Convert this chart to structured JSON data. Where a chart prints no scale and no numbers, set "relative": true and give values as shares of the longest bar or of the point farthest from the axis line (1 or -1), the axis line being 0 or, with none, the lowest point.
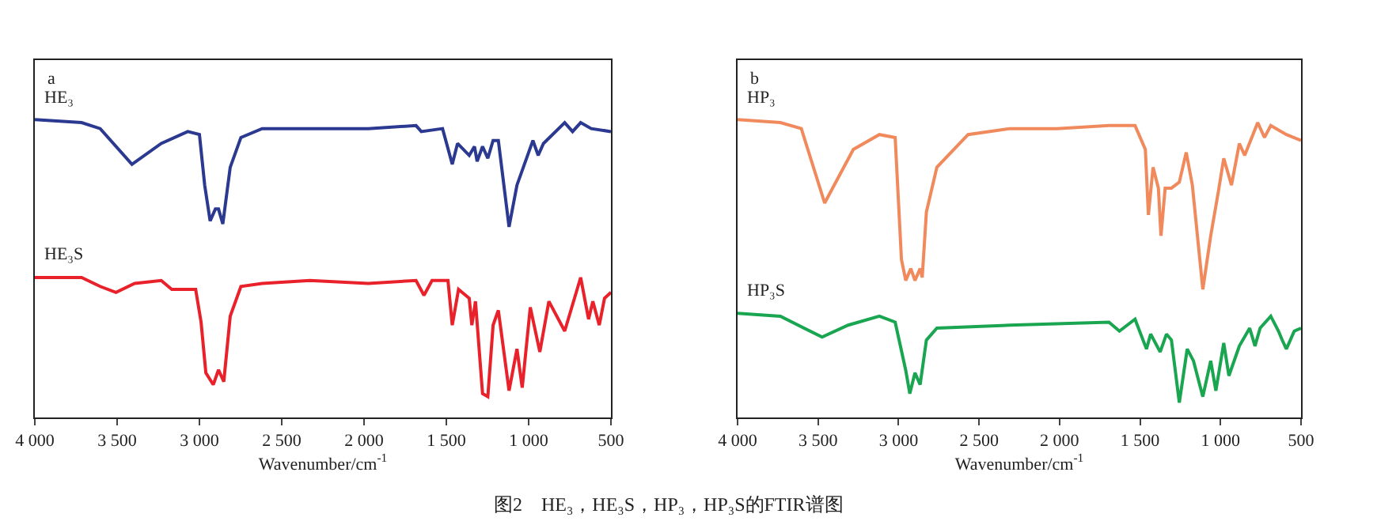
{
  "chart_data": [
    {
      "type": "line",
      "title": "a",
      "xlabel": "Wavenumber/cm$^{-1}$",
      "relative": true,
      "tick_labels": "x",
      "marker": "none",
      "line_style": "solid",
      "xlim": [
        4000,
        500
      ],
      "xticks": [
        {
          "value": 4000,
          "label": "4 000"
        },
        {
          "value": 3500,
          "label": "3 500"
        },
        {
          "value": 3000,
          "label": "3 000"
        },
        {
          "value": 2500,
          "label": "2 500"
        },
        {
          "value": 2000,
          "label": "2 000"
        },
        {
          "value": 1500,
          "label": "1 500"
        },
        {
          "value": 1000,
          "label": "1 000"
        },
        500
      ],
      "series": [
        {
          "name": "HE₃",
          "color": "#2b3990",
          "x": [
            4000,
            3716,
            3603,
            3410,
            3232,
            3071,
            3000,
            2968,
            2935,
            2903,
            2884,
            2858,
            2813,
            2748,
            2619,
            2329,
            1974,
            1684,
            1652,
            1523,
            1464,
            1432,
            1361,
            1329,
            1313,
            1280,
            1248,
            1216,
            1184,
            1119,
            1071,
            974,
            942,
            910,
            781,
            733,
            684,
            620,
            500
          ],
          "values": [
            1.0,
            0.99,
            0.97,
            0.85,
            0.92,
            0.96,
            0.95,
            0.78,
            0.66,
            0.7,
            0.7,
            0.65,
            0.84,
            0.94,
            0.97,
            0.97,
            0.97,
            0.98,
            0.96,
            0.97,
            0.85,
            0.92,
            0.88,
            0.91,
            0.86,
            0.91,
            0.87,
            0.93,
            0.93,
            0.64,
            0.78,
            0.93,
            0.88,
            0.92,
            0.99,
            0.96,
            0.99,
            0.97,
            0.96
          ]
        },
        {
          "name": "HE₃S",
          "color": "#e8212a",
          "x": [
            4000,
            3716,
            3603,
            3507,
            3394,
            3232,
            3168,
            3023,
            2990,
            2961,
            2916,
            2884,
            2852,
            2813,
            2748,
            2619,
            2329,
            1974,
            1684,
            1636,
            1587,
            1490,
            1464,
            1426,
            1361,
            1345,
            1323,
            1280,
            1248,
            1216,
            1184,
            1119,
            1071,
            1039,
            990,
            932,
            877,
            781,
            684,
            636,
            610,
            571,
            539,
            500
          ],
          "values": [
            0.47,
            0.47,
            0.44,
            0.42,
            0.45,
            0.46,
            0.43,
            0.43,
            0.32,
            0.15,
            0.11,
            0.16,
            0.12,
            0.34,
            0.44,
            0.45,
            0.46,
            0.45,
            0.46,
            0.41,
            0.46,
            0.46,
            0.31,
            0.43,
            0.4,
            0.31,
            0.39,
            0.08,
            0.07,
            0.31,
            0.36,
            0.09,
            0.23,
            0.1,
            0.37,
            0.22,
            0.39,
            0.29,
            0.47,
            0.33,
            0.39,
            0.31,
            0.4,
            0.42
          ]
        }
      ],
      "annotations": [
        "图2　HE₃，HE₃S，HP₃，HP₃S的FTIR谱图"
      ]
    },
    {
      "type": "line",
      "title": "b",
      "xlabel": "Wavenumber/cm$^{-1}$",
      "relative": true,
      "tick_labels": "x",
      "marker": "none",
      "line_style": "solid",
      "xlim": [
        4000,
        500
      ],
      "xticks": [
        {
          "value": 4000,
          "label": "4 000"
        },
        {
          "value": 3500,
          "label": "3 500"
        },
        {
          "value": 3000,
          "label": "3 000"
        },
        {
          "value": 2500,
          "label": "2 500"
        },
        {
          "value": 2000,
          "label": "2 000"
        },
        {
          "value": 1500,
          "label": "1 500"
        },
        {
          "value": 1000,
          "label": "1 000"
        },
        500
      ],
      "series": [
        {
          "name": "HP₃",
          "color": "#f08a5d",
          "x": [
            4000,
            3734,
            3604,
            3459,
            3281,
            3119,
            3021,
            2982,
            2955,
            2924,
            2898,
            2866,
            2853,
            2827,
            2762,
            2568,
            2309,
            2017,
            1693,
            1531,
            1467,
            1448,
            1419,
            1386,
            1370,
            1344,
            1305,
            1256,
            1213,
            1175,
            1110,
            1061,
            1013,
            980,
            932,
            883,
            850,
            769,
            727,
            688,
            591,
            500
          ],
          "values": [
            1.0,
            0.99,
            0.97,
            0.72,
            0.9,
            0.95,
            0.94,
            0.53,
            0.46,
            0.5,
            0.46,
            0.5,
            0.47,
            0.69,
            0.84,
            0.95,
            0.97,
            0.97,
            0.98,
            0.98,
            0.9,
            0.68,
            0.84,
            0.77,
            0.61,
            0.77,
            0.77,
            0.79,
            0.89,
            0.78,
            0.43,
            0.61,
            0.76,
            0.87,
            0.78,
            0.92,
            0.88,
            0.99,
            0.94,
            0.98,
            0.95,
            0.93
          ]
        },
        {
          "name": "HP₃S",
          "color": "#1aa550",
          "x": [
            4000,
            3734,
            3475,
            3313,
            3119,
            3021,
            2956,
            2930,
            2898,
            2866,
            2827,
            2762,
            2309,
            1693,
            1628,
            1531,
            1460,
            1434,
            1375,
            1336,
            1305,
            1256,
            1207,
            1168,
            1110,
            1061,
            1029,
            980,
            948,
            883,
            819,
            786,
            754,
            688,
            640,
            617,
            591,
            542,
            500
          ],
          "values": [
            0.35,
            0.34,
            0.27,
            0.31,
            0.34,
            0.32,
            0.16,
            0.08,
            0.15,
            0.11,
            0.26,
            0.3,
            0.31,
            0.32,
            0.29,
            0.33,
            0.23,
            0.28,
            0.22,
            0.28,
            0.26,
            0.05,
            0.23,
            0.19,
            0.07,
            0.19,
            0.09,
            0.25,
            0.14,
            0.24,
            0.3,
            0.24,
            0.3,
            0.34,
            0.29,
            0.26,
            0.23,
            0.29,
            0.3
          ]
        }
      ]
    }
  ]
}
